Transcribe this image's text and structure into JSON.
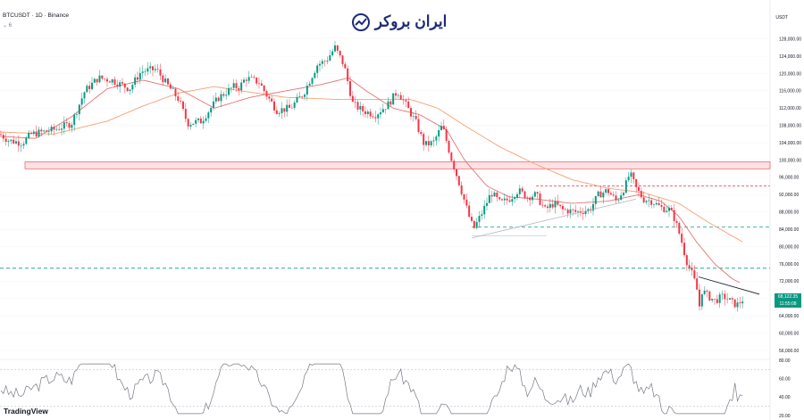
{
  "header": {
    "symbol": "BTCUSDT · 1D · Binance",
    "indicator_row": "⌄ 6"
  },
  "brand": {
    "name": "ایران بروکر",
    "logo_icon": "chart-trend-icon"
  },
  "currency": "USDT",
  "footer": {
    "logo": "TradingView"
  },
  "price_tag": {
    "price": "68,122.35",
    "countdown": "11:55:08"
  },
  "chart_data": [
    {
      "type": "candlestick",
      "ylim": [
        56000,
        130000
      ],
      "y_ticks": [
        128000,
        124000,
        120000,
        116000,
        112000,
        108000,
        104000,
        100000,
        96000,
        92000,
        88000,
        84000,
        80000,
        76000,
        72000,
        68000,
        64000,
        60000,
        56000
      ],
      "y_tick_labels": [
        "128,000.00",
        "124,000.00",
        "120,000.00",
        "116,000.00",
        "112,000.00",
        "108,000.00",
        "104,000.00",
        "100,000.00",
        "96,000.00",
        "92,000.00",
        "88,000.00",
        "84,000.00",
        "80,000.00",
        "76,000.00",
        "72,000.00",
        "68,000.00",
        "64,000.00",
        "60,000.00",
        "56,000.00"
      ],
      "x_count": 294,
      "ohlc_anchors": [
        [
          0,
          106000
        ],
        [
          10,
          104500
        ],
        [
          25,
          104000
        ],
        [
          35,
          106000
        ],
        [
          60,
          107000
        ],
        [
          80,
          108500
        ],
        [
          95,
          116000
        ],
        [
          110,
          119000
        ],
        [
          125,
          118500
        ],
        [
          135,
          117500
        ],
        [
          145,
          116500
        ],
        [
          158,
          120500
        ],
        [
          175,
          121000
        ],
        [
          185,
          118000
        ],
        [
          200,
          114000
        ],
        [
          210,
          108500
        ],
        [
          225,
          109000
        ],
        [
          245,
          114500
        ],
        [
          262,
          117000
        ],
        [
          268,
          116800
        ],
        [
          275,
          119000
        ],
        [
          290,
          118000
        ],
        [
          300,
          114500
        ],
        [
          310,
          111500
        ],
        [
          325,
          112000
        ],
        [
          340,
          115500
        ],
        [
          355,
          122000
        ],
        [
          365,
          123000
        ],
        [
          375,
          126000
        ],
        [
          385,
          122000
        ],
        [
          395,
          113000
        ],
        [
          405,
          111500
        ],
        [
          420,
          110500
        ],
        [
          435,
          113000
        ],
        [
          445,
          116000
        ],
        [
          455,
          112500
        ],
        [
          465,
          109000
        ],
        [
          475,
          103500
        ],
        [
          485,
          104000
        ],
        [
          495,
          108000
        ],
        [
          505,
          100500
        ],
        [
          515,
          94000
        ],
        [
          525,
          87000
        ],
        [
          530,
          84000
        ],
        [
          540,
          88000
        ],
        [
          550,
          92500
        ],
        [
          560,
          90000
        ],
        [
          570,
          91000
        ],
        [
          580,
          93000
        ],
        [
          590,
          91500
        ],
        [
          600,
          92000
        ],
        [
          610,
          88500
        ],
        [
          620,
          90000
        ],
        [
          630,
          88500
        ],
        [
          645,
          88000
        ],
        [
          660,
          88500
        ],
        [
          670,
          92000
        ],
        [
          680,
          93000
        ],
        [
          690,
          90500
        ],
        [
          700,
          94000
        ],
        [
          705,
          97000
        ],
        [
          712,
          93500
        ],
        [
          720,
          91000
        ],
        [
          730,
          90500
        ],
        [
          740,
          89000
        ],
        [
          750,
          88500
        ],
        [
          755,
          86500
        ],
        [
          762,
          82000
        ],
        [
          768,
          77000
        ],
        [
          775,
          73500
        ],
        [
          780,
          70500
        ],
        [
          782,
          65000
        ],
        [
          786,
          70000
        ],
        [
          790,
          69000
        ],
        [
          800,
          67500
        ],
        [
          810,
          68500
        ],
        [
          820,
          67000
        ],
        [
          825,
          66500
        ],
        [
          833,
          68100
        ]
      ],
      "ma_fast_anchors": [
        [
          0,
          105500
        ],
        [
          40,
          105000
        ],
        [
          80,
          110000
        ],
        [
          120,
          116500
        ],
        [
          160,
          118500
        ],
        [
          200,
          116500
        ],
        [
          240,
          112000
        ],
        [
          280,
          114500
        ],
        [
          320,
          116000
        ],
        [
          360,
          117500
        ],
        [
          390,
          119000
        ],
        [
          410,
          116000
        ],
        [
          440,
          112000
        ],
        [
          470,
          110500
        ],
        [
          500,
          107000
        ],
        [
          520,
          100000
        ],
        [
          545,
          94000
        ],
        [
          570,
          91500
        ],
        [
          600,
          91000
        ],
        [
          640,
          90000
        ],
        [
          680,
          90500
        ],
        [
          715,
          92000
        ],
        [
          740,
          90500
        ],
        [
          760,
          87000
        ],
        [
          780,
          81000
        ],
        [
          800,
          76000
        ],
        [
          820,
          72500
        ],
        [
          830,
          71500
        ]
      ],
      "ma_slow_anchors": [
        [
          0,
          106500
        ],
        [
          60,
          106000
        ],
        [
          120,
          109000
        ],
        [
          160,
          112500
        ],
        [
          200,
          115500
        ],
        [
          240,
          117000
        ],
        [
          270,
          116000
        ],
        [
          320,
          114500
        ],
        [
          380,
          114000
        ],
        [
          420,
          114000
        ],
        [
          460,
          114000
        ],
        [
          490,
          112000
        ],
        [
          520,
          108000
        ],
        [
          560,
          103000
        ],
        [
          600,
          99000
        ],
        [
          640,
          95500
        ],
        [
          680,
          93500
        ],
        [
          720,
          92500
        ],
        [
          760,
          90000
        ],
        [
          790,
          86000
        ],
        [
          815,
          83000
        ],
        [
          832,
          81000
        ]
      ],
      "support_zone": [
        98000,
        99600
      ],
      "support_low": 82500,
      "resistance_dashed": [
        [
          94000
        ],
        [
          84500
        ],
        [
          75000
        ]
      ],
      "trendline_rising": [
        [
          528,
          82000
        ],
        [
          712,
          91000
        ]
      ],
      "trendline_falling": [
        [
          782,
          73000
        ],
        [
          850,
          69000
        ]
      ]
    },
    {
      "type": "line",
      "name": "RSI",
      "ylim": [
        20,
        80
      ],
      "y_ticks": [
        80,
        60,
        40,
        20
      ],
      "y_tick_labels": [
        "80.00",
        "60.00",
        "40.00",
        "20.00"
      ],
      "levels": [
        70,
        30
      ]
    }
  ]
}
